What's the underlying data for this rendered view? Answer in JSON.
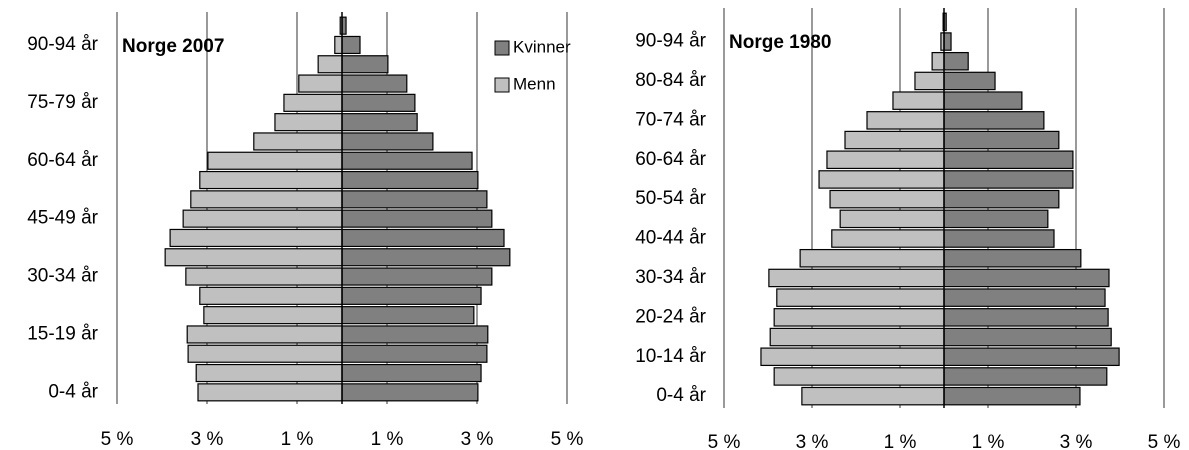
{
  "chart_data": [
    {
      "type": "pyramid",
      "title": "Norge 2007",
      "categories": [
        "0-4 år",
        null,
        null,
        "15-19 år",
        null,
        null,
        "30-34 år",
        null,
        null,
        "45-49 år",
        null,
        null,
        "60-64 år",
        null,
        null,
        "75-79 år",
        null,
        null,
        "90-94 år",
        null
      ],
      "series": [
        {
          "name": "Kvinner",
          "side": "right",
          "color": "#808080",
          "values": [
            3.02,
            3.09,
            3.22,
            3.24,
            2.93,
            3.09,
            3.33,
            3.73,
            3.6,
            3.33,
            3.22,
            3.02,
            2.89,
            2.02,
            1.67,
            1.62,
            1.44,
            1.02,
            0.4,
            0.09
          ]
        },
        {
          "name": "Menn",
          "side": "left",
          "color": "#c0c0c0",
          "values": [
            3.2,
            3.24,
            3.42,
            3.44,
            3.07,
            3.16,
            3.47,
            3.93,
            3.82,
            3.53,
            3.36,
            3.16,
            2.98,
            1.96,
            1.49,
            1.29,
            0.96,
            0.53,
            0.16,
            0.04
          ]
        }
      ],
      "xlim": [
        -5,
        5
      ],
      "xticks": [
        {
          "value": -5,
          "label": "5 %"
        },
        {
          "value": -3,
          "label": "3 %"
        },
        {
          "value": -1,
          "label": "1 %"
        },
        {
          "value": 1,
          "label": "1 %"
        },
        {
          "value": 3,
          "label": "3 %"
        },
        {
          "value": 5,
          "label": "5 %"
        }
      ],
      "grid": true,
      "legend": "top-right"
    },
    {
      "type": "pyramid",
      "title": "Norge 1980",
      "categories": [
        "0-4 år",
        null,
        "10-14 år",
        null,
        "20-24 år",
        null,
        "30-34 år",
        null,
        "40-44 år",
        null,
        "50-54 år",
        null,
        "60-64 år",
        null,
        "70-74 år",
        null,
        "80-84 år",
        null,
        "90-94 år",
        null
      ],
      "series": [
        {
          "side": "right",
          "color": "#808080",
          "values": [
            3.09,
            3.7,
            3.98,
            3.8,
            3.73,
            3.66,
            3.75,
            3.11,
            2.5,
            2.36,
            2.61,
            2.93,
            2.93,
            2.61,
            2.27,
            1.77,
            1.16,
            0.55,
            0.16,
            0.05
          ]
        },
        {
          "side": "left",
          "color": "#c0c0c0",
          "values": [
            3.23,
            3.86,
            4.16,
            3.95,
            3.86,
            3.8,
            3.98,
            3.27,
            2.55,
            2.36,
            2.59,
            2.84,
            2.66,
            2.25,
            1.75,
            1.16,
            0.66,
            0.27,
            0.07,
            0.02
          ]
        }
      ],
      "xlim": [
        -5,
        5
      ],
      "xticks": [
        {
          "value": -5,
          "label": "5 %"
        },
        {
          "value": -3,
          "label": "3 %"
        },
        {
          "value": -1,
          "label": "1 %"
        },
        {
          "value": 1,
          "label": "1 %"
        },
        {
          "value": 3,
          "label": "3 %"
        },
        {
          "value": 5,
          "label": "5 %"
        }
      ],
      "grid": true
    }
  ]
}
